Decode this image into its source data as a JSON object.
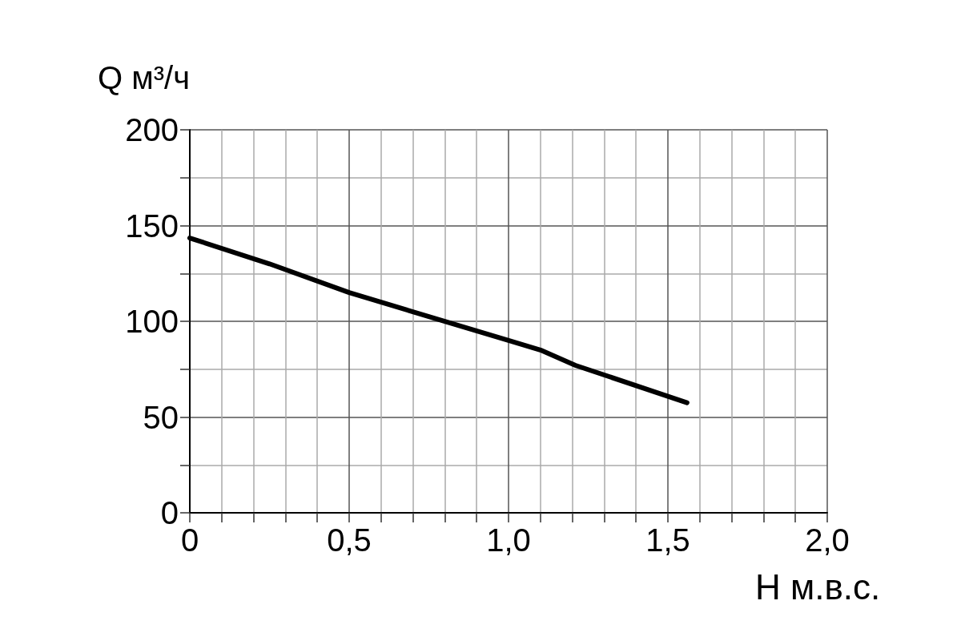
{
  "chart_data": {
    "type": "line",
    "xlabel": "H м.в.с.",
    "ylabel": "Q м³/ч",
    "x": [
      0,
      0.25,
      0.5,
      0.75,
      1.0,
      1.1,
      1.21,
      1.56
    ],
    "series": [
      {
        "color": "#000000",
        "values": [
          143.5,
          130,
          115,
          102.5,
          90,
          85,
          77,
          57.5
        ]
      }
    ],
    "xlim": [
      0,
      2
    ],
    "xticks": [
      0,
      {
        "value": 0.1,
        "label": null
      },
      {
        "value": 0.2,
        "label": null
      },
      {
        "value": 0.3,
        "label": null
      },
      {
        "value": 0.4,
        "label": null
      },
      {
        "value": 0.5,
        "label": "0,5"
      },
      {
        "value": 0.6,
        "label": null
      },
      {
        "value": 0.7,
        "label": null
      },
      {
        "value": 0.8,
        "label": null
      },
      {
        "value": 0.9,
        "label": null
      },
      {
        "value": 1.0,
        "label": "1,0"
      },
      {
        "value": 1.1,
        "label": null
      },
      {
        "value": 1.2,
        "label": null
      },
      {
        "value": 1.3,
        "label": null
      },
      {
        "value": 1.4,
        "label": null
      },
      {
        "value": 1.5,
        "label": "1,5"
      },
      {
        "value": 1.6,
        "label": null
      },
      {
        "value": 1.7,
        "label": null
      },
      {
        "value": 1.8,
        "label": null
      },
      {
        "value": 1.9,
        "label": null
      },
      {
        "value": 2.0,
        "label": "2,0"
      }
    ],
    "ylim": [
      0,
      200
    ],
    "yticks": [
      0,
      {
        "value": 25,
        "label": null
      },
      50,
      {
        "value": 75,
        "label": null
      },
      100,
      {
        "value": 125,
        "label": null
      },
      150,
      {
        "value": 175,
        "label": null
      },
      200
    ],
    "grid": true,
    "marker": "none",
    "line_style": "solid"
  }
}
